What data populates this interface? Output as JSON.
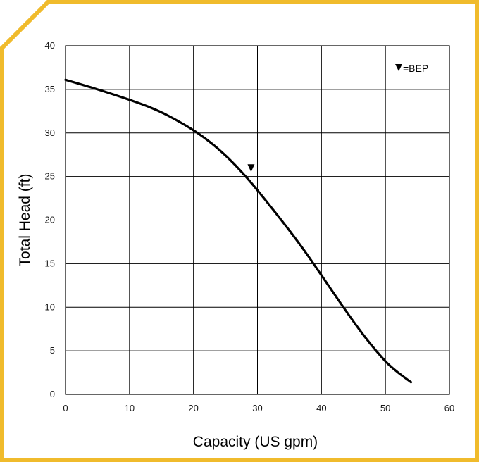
{
  "frame_color": "#F0BB2C",
  "chart_data": {
    "type": "line",
    "title": "",
    "xlabel": "Capacity (US gpm)",
    "ylabel": "Total Head (ft)",
    "xlim": [
      0,
      60
    ],
    "ylim": [
      0,
      40
    ],
    "x_ticks": [
      0,
      10,
      20,
      30,
      40,
      50,
      60
    ],
    "y_ticks": [
      0,
      5,
      10,
      15,
      20,
      25,
      30,
      35,
      40
    ],
    "x_tick_labels": [
      "0",
      "10",
      "20",
      "30",
      "40",
      "50",
      "60"
    ],
    "y_tick_labels": [
      "0",
      "5",
      "10",
      "15",
      "20",
      "25",
      "30",
      "35",
      "40"
    ],
    "grid": true,
    "series": [
      {
        "color": "#000000",
        "x": [
          0,
          5,
          10,
          13,
          16,
          20,
          23,
          26,
          29,
          32,
          35,
          38,
          41,
          44,
          47,
          50,
          52,
          54
        ],
        "y": [
          36.1,
          35.0,
          33.8,
          33.0,
          32.0,
          30.3,
          28.7,
          26.7,
          24.3,
          21.6,
          18.8,
          15.8,
          12.6,
          9.4,
          6.4,
          3.8,
          2.5,
          1.4
        ]
      }
    ],
    "annotations": [
      {
        "type": "marker",
        "symbol": "triangle-down",
        "label": "BEP",
        "x": 29,
        "y": 26.0
      }
    ],
    "legend": {
      "text": "=BEP",
      "symbol": "triangle-down",
      "position": "top-right"
    }
  }
}
